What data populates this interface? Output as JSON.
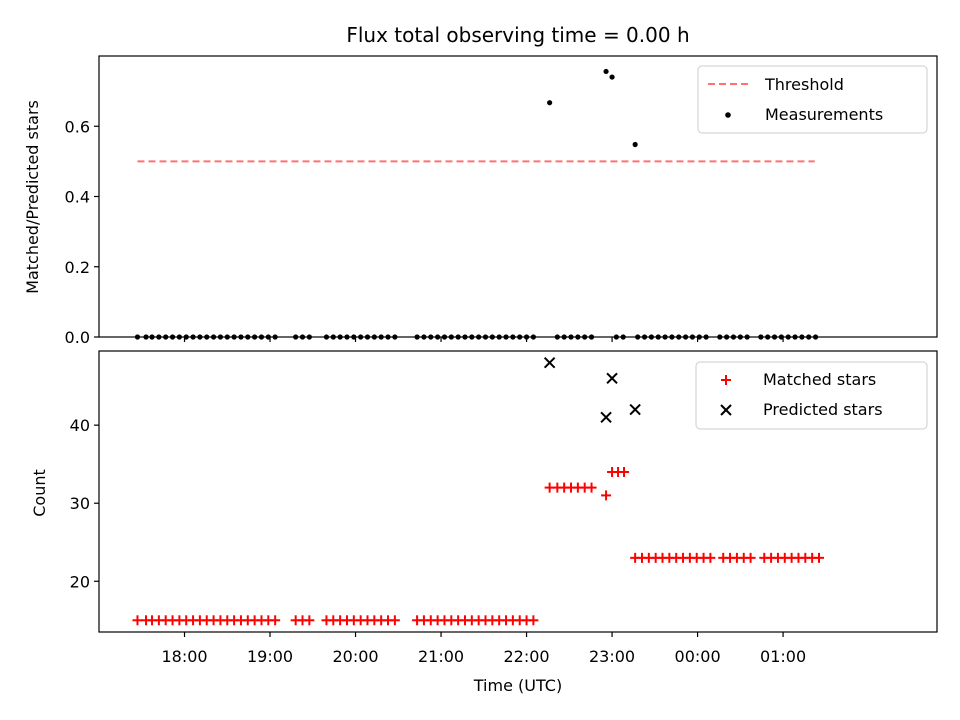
{
  "chart_data": [
    {
      "type": "scatter",
      "title": "Flux total observing time = 0.00 h",
      "ylabel": "Matched/Predicted stars",
      "xlim": [
        17.0,
        26.8
      ],
      "ylim": [
        0.0,
        0.8
      ],
      "yticks": [
        0.0,
        0.2,
        0.4,
        0.6
      ],
      "ytick_labels": [
        "0.0",
        "0.2",
        "0.4",
        "0.6"
      ],
      "grid": false,
      "legend_position": "top-right",
      "series": [
        {
          "name": "Threshold",
          "kind": "dashed-line",
          "color": "#ff7070",
          "x": [
            17.45,
            25.37
          ],
          "y": [
            0.5,
            0.5
          ]
        },
        {
          "name": "Measurements",
          "kind": "dots",
          "color": "#000000",
          "x": [
            22.27,
            22.93,
            23.0,
            23.27
          ],
          "y": [
            0.667,
            0.756,
            0.74,
            0.548
          ],
          "zero_x": [
            17.45,
            17.55,
            17.62,
            17.7,
            17.78,
            17.86,
            17.94,
            18.02,
            18.1,
            18.18,
            18.26,
            18.34,
            18.42,
            18.5,
            18.58,
            18.66,
            18.74,
            18.82,
            18.9,
            18.98,
            19.06,
            19.3,
            19.38,
            19.46,
            19.66,
            19.74,
            19.82,
            19.9,
            19.98,
            20.06,
            20.14,
            20.22,
            20.3,
            20.38,
            20.46,
            20.72,
            20.8,
            20.88,
            20.96,
            21.04,
            21.12,
            21.2,
            21.28,
            21.36,
            21.44,
            21.52,
            21.6,
            21.68,
            21.76,
            21.84,
            21.92,
            22.0,
            22.08,
            22.36,
            22.44,
            22.52,
            22.6,
            22.68,
            22.76,
            23.05,
            23.13,
            23.3,
            23.38,
            23.46,
            23.54,
            23.62,
            23.7,
            23.78,
            23.86,
            23.94,
            24.02,
            24.1,
            24.26,
            24.34,
            24.42,
            24.5,
            24.58,
            24.74,
            24.82,
            24.9,
            24.98,
            25.06,
            25.14,
            25.22,
            25.3,
            25.38
          ],
          "zero_y": 0.0
        }
      ]
    },
    {
      "type": "scatter",
      "xlabel": "Time (UTC)",
      "ylabel": "Count",
      "xlim": [
        17.0,
        26.8
      ],
      "ylim": [
        13.5,
        49.5
      ],
      "yticks": [
        20,
        30,
        40
      ],
      "ytick_labels": [
        "20",
        "30",
        "40"
      ],
      "xticks": [
        18,
        19,
        20,
        21,
        22,
        23,
        24,
        25
      ],
      "xtick_labels": [
        "18:00",
        "19:00",
        "20:00",
        "21:00",
        "22:00",
        "23:00",
        "00:00",
        "01:00"
      ],
      "grid": false,
      "legend_position": "top-right",
      "series": [
        {
          "name": "Matched stars",
          "kind": "plus",
          "color": "#ff0000",
          "groups": [
            {
              "y": 15,
              "x": [
                17.45,
                17.55,
                17.62,
                17.7,
                17.78,
                17.86,
                17.94,
                18.02,
                18.1,
                18.18,
                18.26,
                18.34,
                18.42,
                18.5,
                18.58,
                18.66,
                18.74,
                18.82,
                18.9,
                18.98,
                19.06,
                19.3,
                19.38,
                19.46,
                19.66,
                19.74,
                19.82,
                19.9,
                19.98,
                20.06,
                20.14,
                20.22,
                20.3,
                20.38,
                20.46,
                20.72,
                20.8,
                20.88,
                20.96,
                21.04,
                21.12,
                21.2,
                21.28,
                21.36,
                21.44,
                21.52,
                21.6,
                21.68,
                21.76,
                21.84,
                21.92,
                22.0,
                22.08
              ]
            },
            {
              "y": 32,
              "x": [
                22.27,
                22.36,
                22.44,
                22.52,
                22.6,
                22.68,
                22.76
              ]
            },
            {
              "y": 31,
              "x": [
                22.93
              ]
            },
            {
              "y": 34,
              "x": [
                23.0,
                23.07,
                23.14
              ]
            },
            {
              "y": 23,
              "x": [
                23.27,
                23.35,
                23.43,
                23.51,
                23.59,
                23.67,
                23.75,
                23.83,
                23.91,
                23.99,
                24.07,
                24.15,
                24.3,
                24.38,
                24.46,
                24.54,
                24.62,
                24.78,
                24.86,
                24.94,
                25.02,
                25.1,
                25.18,
                25.26,
                25.34,
                25.42
              ]
            }
          ]
        },
        {
          "name": "Predicted stars",
          "kind": "x",
          "color": "#000000",
          "x": [
            22.27,
            22.93,
            23.0,
            23.27
          ],
          "y": [
            48,
            41,
            46,
            42
          ]
        }
      ]
    }
  ]
}
